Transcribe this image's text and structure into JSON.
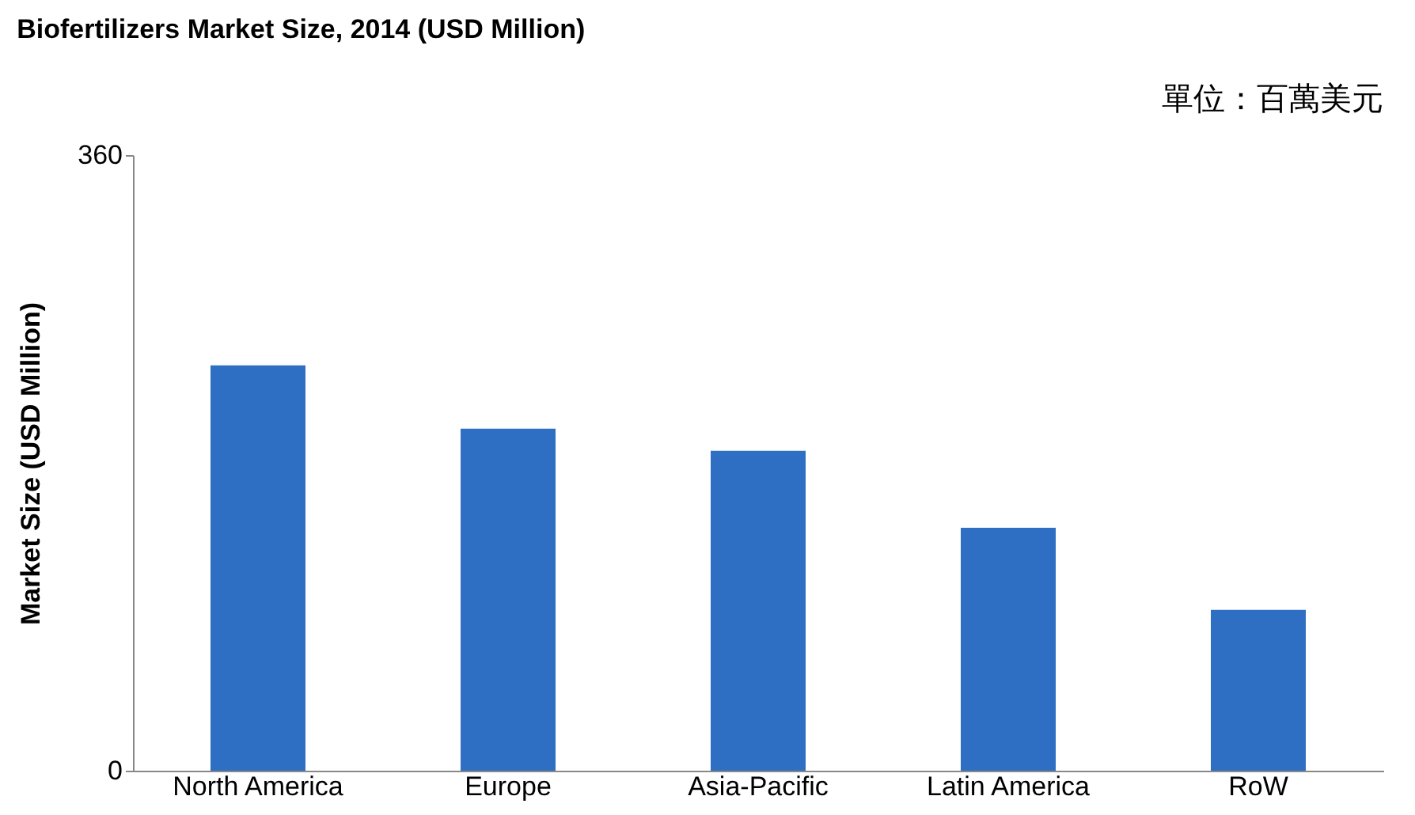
{
  "chart_data": {
    "type": "bar",
    "title": "Biofertilizers Market Size, 2014 (USD Million)",
    "ylabel": "Market Size (USD Million)",
    "annotations": [
      "單位：百萬美元"
    ],
    "categories": [
      "North America",
      "Europe",
      "Asia-Pacific",
      "Latin America",
      "RoW"
    ],
    "values": [
      237,
      200,
      187,
      142,
      94
    ],
    "color": "#2e6fc4",
    "ylim": [
      0,
      360
    ],
    "yticks": [
      0,
      360
    ],
    "grid": false
  }
}
